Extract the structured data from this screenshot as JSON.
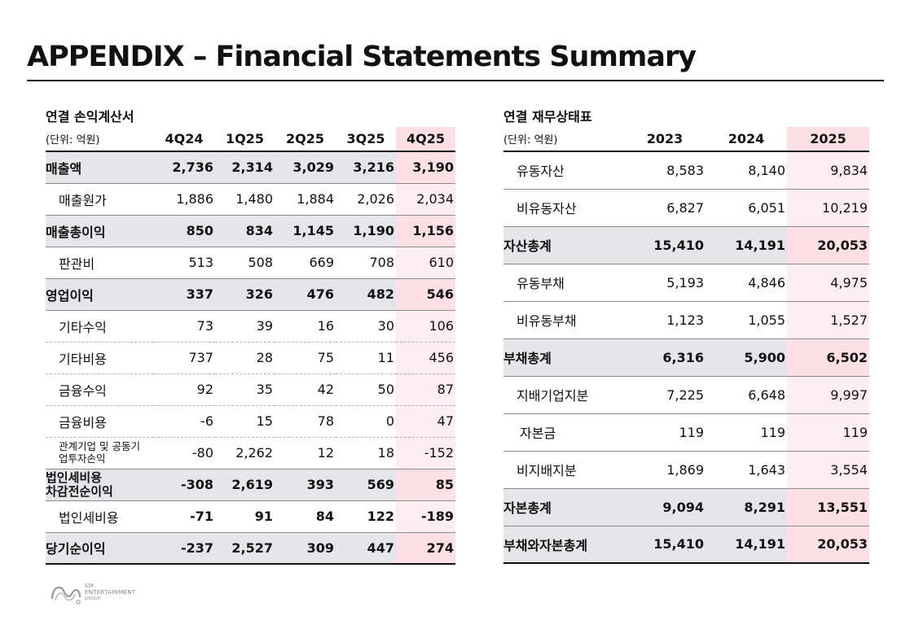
{
  "title": "APPENDIX – Financial Statements Summary",
  "income_statement": {
    "title": "연결 손익계산서",
    "unit": "(단위: 억원)",
    "columns": [
      "4Q24",
      "1Q25",
      "2Q25",
      "3Q25",
      "4Q25"
    ],
    "rows": [
      {
        "label": "매출액",
        "values": [
          "2,736",
          "2,314",
          "3,029",
          "3,216",
          "3,190"
        ]
      },
      {
        "label": "매출원가",
        "values": [
          "1,886",
          "1,480",
          "1,884",
          "2,026",
          "2,034"
        ]
      },
      {
        "label": "매출총이익",
        "values": [
          "850",
          "834",
          "1,145",
          "1,190",
          "1,156"
        ]
      },
      {
        "label": "판관비",
        "values": [
          "513",
          "508",
          "669",
          "708",
          "610"
        ]
      },
      {
        "label": "영업이익",
        "values": [
          "337",
          "326",
          "476",
          "482",
          "546"
        ]
      },
      {
        "label": "기타수익",
        "values": [
          "73",
          "39",
          "16",
          "30",
          "106"
        ]
      },
      {
        "label": "기타비용",
        "values": [
          "737",
          "28",
          "75",
          "11",
          "456"
        ]
      },
      {
        "label": "금융수익",
        "values": [
          "92",
          "35",
          "42",
          "50",
          "87"
        ]
      },
      {
        "label": "금융비용",
        "values": [
          "-6",
          "15",
          "78",
          "0",
          "47"
        ]
      },
      {
        "label_line1": "관계기업 및 공동기",
        "label_line2": "업투자손익",
        "values": [
          "-80",
          "2,262",
          "12",
          "18",
          "-152"
        ]
      },
      {
        "label_line1": "법인세비용",
        "label_line2": "차감전순이익",
        "values": [
          "-308",
          "2,619",
          "393",
          "569",
          "85"
        ]
      },
      {
        "label": "법인세비용",
        "values": [
          "-71",
          "91",
          "84",
          "122",
          "-189"
        ]
      },
      {
        "label": "당기순이익",
        "values": [
          "-237",
          "2,527",
          "309",
          "447",
          "274"
        ]
      }
    ]
  },
  "balance_sheet": {
    "title": "연결 재무상태표",
    "unit": "(단위: 억원)",
    "columns": [
      "2023",
      "2024",
      "2025"
    ],
    "rows": [
      {
        "label": "유동자산",
        "values": [
          "8,583",
          "8,140",
          "9,834"
        ]
      },
      {
        "label": "비유동자산",
        "values": [
          "6,827",
          "6,051",
          "10,219"
        ]
      },
      {
        "label": "자산총계",
        "values": [
          "15,410",
          "14,191",
          "20,053"
        ]
      },
      {
        "label": "유동부채",
        "values": [
          "5,193",
          "4,846",
          "4,975"
        ]
      },
      {
        "label": "비유동부채",
        "values": [
          "1,123",
          "1,055",
          "1,527"
        ]
      },
      {
        "label": "부채총계",
        "values": [
          "6,316",
          "5,900",
          "6,502"
        ]
      },
      {
        "label": "지배기업지분",
        "values": [
          "7,225",
          "6,648",
          "9,997"
        ]
      },
      {
        "label": "자본금",
        "values": [
          "119",
          "119",
          "119"
        ]
      },
      {
        "label": "비지배지분",
        "values": [
          "1,869",
          "1,643",
          "3,554"
        ]
      },
      {
        "label": "자본총계",
        "values": [
          "9,094",
          "8,291",
          "13,551"
        ]
      },
      {
        "label": "부채와자본총계",
        "values": [
          "15,410",
          "14,191",
          "20,053"
        ]
      }
    ]
  },
  "logo": {
    "line1": "SM",
    "line2": "ENTERTAINMENT",
    "line3": "GROUP"
  }
}
